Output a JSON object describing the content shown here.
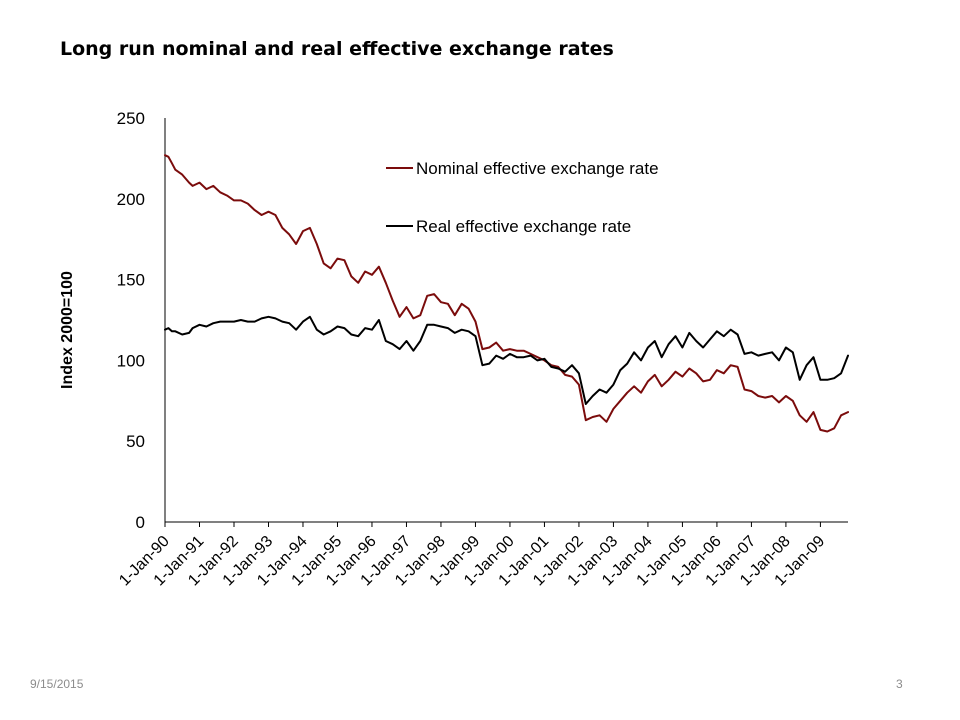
{
  "slide": {
    "title": "Long run nominal and real effective exchange rates",
    "date": "9/15/2015",
    "page_number": "3"
  },
  "colors": {
    "nominal": "#7b0c0c",
    "real": "#000000",
    "axis": "#000000"
  },
  "chart_data": {
    "type": "line",
    "ylabel": "Index 2000=100",
    "xlabel": "",
    "ylim": [
      0,
      250
    ],
    "yticks": [
      0,
      50,
      100,
      150,
      200,
      250
    ],
    "xlim": [
      1990.0,
      2009.8
    ],
    "x_tick_labels": [
      "1-Jan-90",
      "1-Jan-91",
      "1-Jan-92",
      "1-Jan-93",
      "1-Jan-94",
      "1-Jan-95",
      "1-Jan-96",
      "1-Jan-97",
      "1-Jan-98",
      "1-Jan-99",
      "1-Jan-00",
      "1-Jan-01",
      "1-Jan-02",
      "1-Jan-03",
      "1-Jan-04",
      "1-Jan-05",
      "1-Jan-06",
      "1-Jan-07",
      "1-Jan-08",
      "1-Jan-09"
    ],
    "x_tick_values": [
      1990,
      1991,
      1992,
      1993,
      1994,
      1995,
      1996,
      1997,
      1998,
      1999,
      2000,
      2001,
      2002,
      2003,
      2004,
      2005,
      2006,
      2007,
      2008,
      2009
    ],
    "grid": false,
    "legend_position": "top-center",
    "series": [
      {
        "name": "Nominal effective exchange rate",
        "x": [
          1990.0,
          1990.1,
          1990.2,
          1990.3,
          1990.5,
          1990.7,
          1990.8,
          1991.0,
          1991.2,
          1991.4,
          1991.6,
          1991.8,
          1992.0,
          1992.2,
          1992.4,
          1992.6,
          1992.8,
          1993.0,
          1993.2,
          1993.4,
          1993.6,
          1993.8,
          1994.0,
          1994.2,
          1994.4,
          1994.6,
          1994.8,
          1995.0,
          1995.2,
          1995.4,
          1995.6,
          1995.8,
          1996.0,
          1996.2,
          1996.4,
          1996.6,
          1996.8,
          1997.0,
          1997.2,
          1997.4,
          1997.6,
          1997.8,
          1998.0,
          1998.2,
          1998.4,
          1998.6,
          1998.8,
          1999.0,
          1999.2,
          1999.4,
          1999.6,
          1999.8,
          2000.0,
          2000.2,
          2000.4,
          2000.6,
          2000.8,
          2001.0,
          2001.2,
          2001.4,
          2001.6,
          2001.8,
          2002.0,
          2002.2,
          2002.4,
          2002.6,
          2002.8,
          2003.0,
          2003.2,
          2003.4,
          2003.6,
          2003.8,
          2004.0,
          2004.2,
          2004.4,
          2004.6,
          2004.8,
          2005.0,
          2005.2,
          2005.4,
          2005.6,
          2005.8,
          2006.0,
          2006.2,
          2006.4,
          2006.6,
          2006.8,
          2007.0,
          2007.2,
          2007.4,
          2007.6,
          2007.8,
          2008.0,
          2008.2,
          2008.4,
          2008.6,
          2008.8,
          2009.0,
          2009.2,
          2009.4,
          2009.6,
          2009.8
        ],
        "values": [
          227,
          226,
          222,
          218,
          215,
          210,
          208,
          210,
          206,
          208,
          204,
          202,
          199,
          199,
          197,
          193,
          190,
          192,
          190,
          182,
          178,
          172,
          180,
          182,
          172,
          160,
          157,
          163,
          162,
          152,
          148,
          155,
          153,
          158,
          148,
          137,
          127,
          133,
          126,
          128,
          140,
          141,
          136,
          135,
          128,
          135,
          132,
          124,
          107,
          108,
          111,
          106,
          107,
          106,
          106,
          104,
          102,
          100,
          97,
          96,
          91,
          90,
          85,
          63,
          65,
          66,
          62,
          70,
          75,
          80,
          84,
          80,
          87,
          91,
          84,
          88,
          93,
          90,
          95,
          92,
          87,
          88,
          94,
          92,
          97,
          96,
          82,
          81,
          78,
          77,
          78,
          74,
          78,
          75,
          66,
          62,
          68,
          57,
          56,
          58,
          66,
          68
        ]
      },
      {
        "name": "Real effective exchange rate",
        "x": [
          1990.0,
          1990.1,
          1990.2,
          1990.3,
          1990.5,
          1990.7,
          1990.8,
          1991.0,
          1991.2,
          1991.4,
          1991.6,
          1991.8,
          1992.0,
          1992.2,
          1992.4,
          1992.6,
          1992.8,
          1993.0,
          1993.2,
          1993.4,
          1993.6,
          1993.8,
          1994.0,
          1994.2,
          1994.4,
          1994.6,
          1994.8,
          1995.0,
          1995.2,
          1995.4,
          1995.6,
          1995.8,
          1996.0,
          1996.2,
          1996.4,
          1996.6,
          1996.8,
          1997.0,
          1997.2,
          1997.4,
          1997.6,
          1997.8,
          1998.0,
          1998.2,
          1998.4,
          1998.6,
          1998.8,
          1999.0,
          1999.2,
          1999.4,
          1999.6,
          1999.8,
          2000.0,
          2000.2,
          2000.4,
          2000.6,
          2000.8,
          2001.0,
          2001.2,
          2001.4,
          2001.6,
          2001.8,
          2002.0,
          2002.2,
          2002.4,
          2002.6,
          2002.8,
          2003.0,
          2003.2,
          2003.4,
          2003.6,
          2003.8,
          2004.0,
          2004.2,
          2004.4,
          2004.6,
          2004.8,
          2005.0,
          2005.2,
          2005.4,
          2005.6,
          2005.8,
          2006.0,
          2006.2,
          2006.4,
          2006.6,
          2006.8,
          2007.0,
          2007.2,
          2007.4,
          2007.6,
          2007.8,
          2008.0,
          2008.2,
          2008.4,
          2008.6,
          2008.8,
          2009.0,
          2009.2,
          2009.4,
          2009.6,
          2009.8
        ],
        "values": [
          119,
          120,
          118,
          118,
          116,
          117,
          120,
          122,
          121,
          123,
          124,
          124,
          124,
          125,
          124,
          124,
          126,
          127,
          126,
          124,
          123,
          119,
          124,
          127,
          119,
          116,
          118,
          121,
          120,
          116,
          115,
          120,
          119,
          125,
          112,
          110,
          107,
          112,
          106,
          112,
          122,
          122,
          121,
          120,
          117,
          119,
          118,
          115,
          97,
          98,
          103,
          101,
          104,
          102,
          102,
          103,
          100,
          101,
          96,
          95,
          93,
          97,
          92,
          73,
          78,
          82,
          80,
          85,
          94,
          98,
          105,
          100,
          108,
          112,
          102,
          110,
          115,
          108,
          117,
          112,
          108,
          113,
          118,
          115,
          119,
          116,
          104,
          105,
          103,
          104,
          105,
          100,
          108,
          105,
          88,
          97,
          102,
          88,
          88,
          89,
          92,
          103
        ]
      }
    ]
  }
}
